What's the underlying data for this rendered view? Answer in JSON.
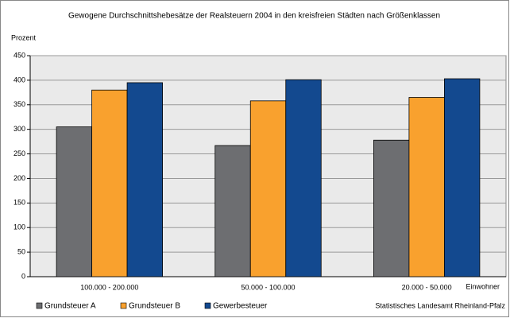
{
  "chart_data": {
    "type": "bar",
    "title": "Gewogene Durchschnittshebesätze der Realsteuern 2004 in den kreisfreien Städten nach Größenklassen",
    "y_label": "Prozent",
    "x_label": "Einwohner",
    "source": "Statistisches Landesamt Rheinland-Pfalz",
    "categories": [
      "100.000 - 200.000",
      "50.000 - 100.000",
      "20.000 - 50.000"
    ],
    "series": [
      {
        "name": "Grundsteuer A",
        "color": "#6d6e71",
        "values": [
          305,
          267,
          278
        ]
      },
      {
        "name": "Grundsteuer B",
        "color": "#f9a12e",
        "values": [
          380,
          358,
          365
        ]
      },
      {
        "name": "Gewerbesteuer",
        "color": "#13498f",
        "values": [
          395,
          401,
          403
        ]
      }
    ],
    "ylim": [
      0,
      450
    ],
    "yticks": [
      0,
      50,
      100,
      150,
      200,
      250,
      300,
      350,
      400,
      450
    ],
    "grid": true
  }
}
